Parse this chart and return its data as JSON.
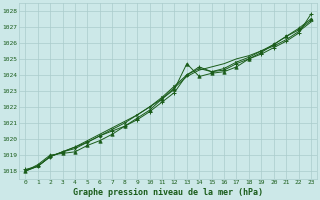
{
  "background_color": "#cce8e8",
  "grid_color": "#aacccc",
  "line_color": "#1a5c1a",
  "title": "Graphe pression niveau de la mer (hPa)",
  "xlim": [
    -0.5,
    23.5
  ],
  "ylim": [
    1017.5,
    1028.5
  ],
  "yticks": [
    1018,
    1019,
    1020,
    1021,
    1022,
    1023,
    1024,
    1025,
    1026,
    1027,
    1028
  ],
  "xticks": [
    0,
    1,
    2,
    3,
    4,
    5,
    6,
    7,
    8,
    9,
    10,
    11,
    12,
    13,
    14,
    15,
    16,
    17,
    18,
    19,
    20,
    21,
    22,
    23
  ],
  "series1": [
    1018.1,
    1018.3,
    1018.9,
    1019.2,
    1019.5,
    1019.8,
    1020.2,
    1020.5,
    1020.8,
    1021.2,
    1021.7,
    1022.3,
    1022.9,
    1024.0,
    1024.5,
    1024.2,
    1024.3,
    1024.7,
    1025.0,
    1025.3,
    1025.7,
    1026.1,
    1026.6,
    1027.8
  ],
  "series2": [
    1018.0,
    1018.3,
    1018.9,
    1019.2,
    1019.5,
    1019.9,
    1020.3,
    1020.7,
    1021.1,
    1021.5,
    1022.0,
    1022.5,
    1023.2,
    1023.9,
    1024.3,
    1024.5,
    1024.7,
    1025.0,
    1025.2,
    1025.5,
    1025.8,
    1026.2,
    1026.7,
    1027.3
  ],
  "series3": [
    1018.0,
    1018.3,
    1018.9,
    1019.2,
    1019.4,
    1019.8,
    1020.2,
    1020.6,
    1021.0,
    1021.5,
    1022.0,
    1022.6,
    1023.3,
    1024.0,
    1024.4,
    1024.2,
    1024.4,
    1024.8,
    1025.1,
    1025.5,
    1025.9,
    1026.4,
    1026.8,
    1027.4
  ],
  "series4": [
    1018.0,
    1018.4,
    1019.0,
    1019.1,
    1019.2,
    1019.6,
    1019.9,
    1020.3,
    1020.8,
    1021.3,
    1021.8,
    1022.5,
    1023.1,
    1024.7,
    1023.9,
    1024.1,
    1024.2,
    1024.5,
    1025.0,
    1025.4,
    1025.9,
    1026.4,
    1026.9,
    1027.5
  ]
}
